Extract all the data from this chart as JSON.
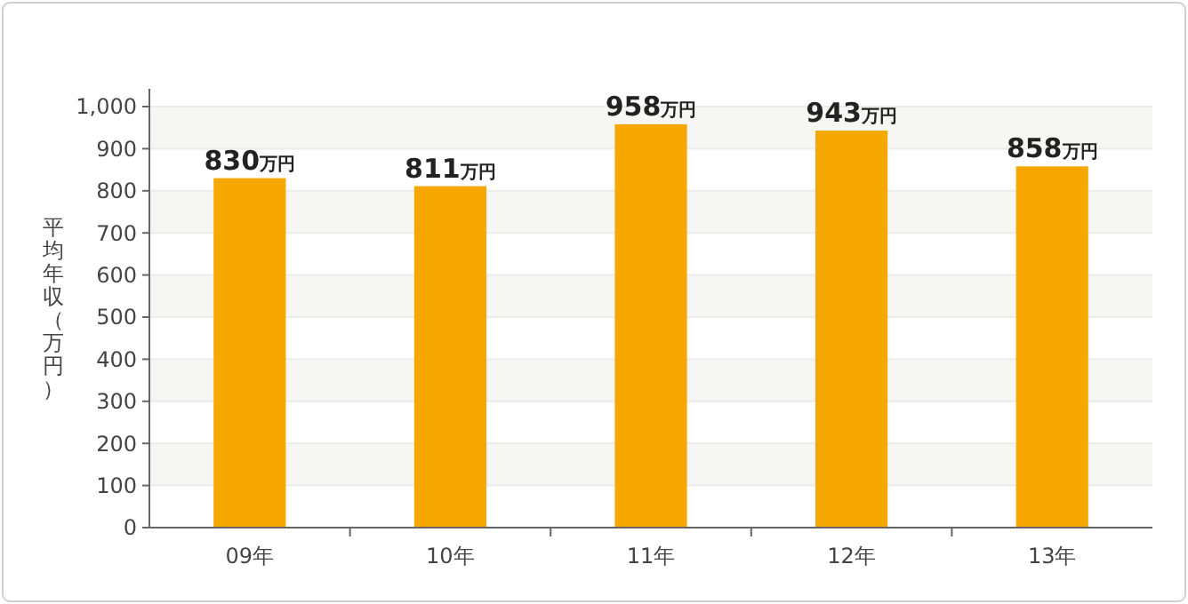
{
  "chart_data": {
    "type": "bar",
    "ylabel": "平均年収（万円）",
    "categories": [
      "09年",
      "10年",
      "11年",
      "12年",
      "13年"
    ],
    "values": [
      830,
      811,
      958,
      943,
      858
    ],
    "value_labels": [
      "830万円",
      "811万円",
      "958万円",
      "943万円",
      "858万円"
    ],
    "color": "#f7a800",
    "ylim": [
      0,
      1000
    ],
    "yticks": [
      0,
      100,
      200,
      300,
      400,
      500,
      600,
      700,
      800,
      900,
      {
        "value": 1000,
        "label": "1,000"
      }
    ],
    "grid": "y"
  }
}
